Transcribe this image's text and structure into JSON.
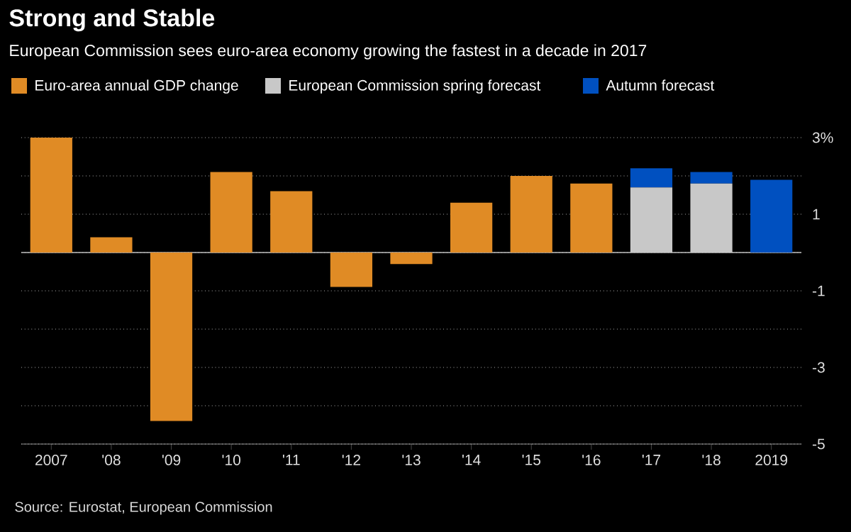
{
  "chart_data": {
    "type": "bar",
    "stacked": true,
    "title": "Strong and Stable",
    "subtitle": "European Commission sees euro-area economy growing the fastest in a decade in 2017",
    "categories": [
      "2007",
      "'08",
      "'09",
      "'10",
      "'11",
      "'12",
      "'13",
      "'14",
      "'15",
      "'16",
      "'17",
      "'18",
      "2019"
    ],
    "series": [
      {
        "name": "Euro-area annual GDP change",
        "color": "#e08b25",
        "values": [
          3.0,
          0.4,
          -4.4,
          2.1,
          1.6,
          -0.9,
          -0.3,
          1.3,
          2.0,
          1.8,
          null,
          null,
          null
        ]
      },
      {
        "name": "European Commission spring forecast",
        "color": "#c8c8c8",
        "values": [
          null,
          null,
          null,
          null,
          null,
          null,
          null,
          null,
          null,
          null,
          1.7,
          1.8,
          null
        ]
      },
      {
        "name": "Autumn forecast",
        "color": "#0050c0",
        "values": [
          null,
          null,
          null,
          null,
          null,
          null,
          null,
          null,
          null,
          null,
          0.5,
          0.3,
          1.9
        ]
      }
    ],
    "ylim": [
      -5,
      3
    ],
    "yticks": [
      {
        "value": 3,
        "label": "3%"
      },
      {
        "value": 2,
        "label": null
      },
      1,
      {
        "value": 0,
        "label": null
      },
      -1,
      {
        "value": -2,
        "label": null
      },
      -3,
      {
        "value": -4,
        "label": null
      },
      -5
    ],
    "grid": "y",
    "legend": "top left",
    "annotations": [
      "Source: Eurostat, European Commission"
    ]
  }
}
